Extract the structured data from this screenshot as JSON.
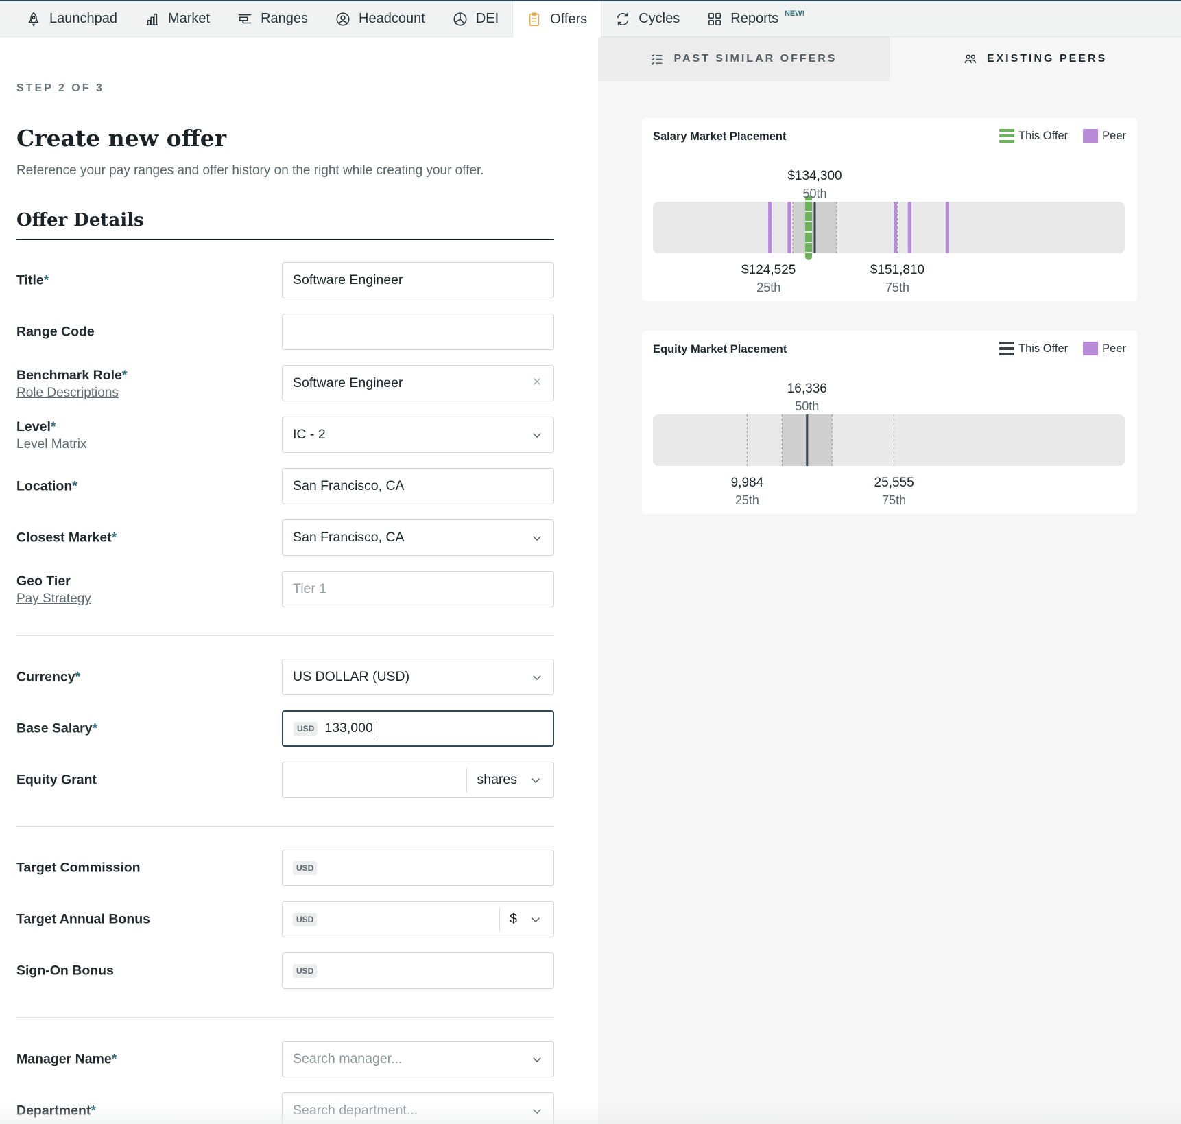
{
  "nav": {
    "items": [
      {
        "label": "Launchpad",
        "icon": "rocket-icon"
      },
      {
        "label": "Market",
        "icon": "bar-chart-icon"
      },
      {
        "label": "Ranges",
        "icon": "ranges-icon"
      },
      {
        "label": "Headcount",
        "icon": "person-circle-icon"
      },
      {
        "label": "DEI",
        "icon": "pie-chart-icon"
      },
      {
        "label": "Offers",
        "icon": "clipboard-icon",
        "active": true
      },
      {
        "label": "Cycles",
        "icon": "refresh-icon"
      },
      {
        "label": "Reports",
        "icon": "grid-icon",
        "badge": "NEW!"
      }
    ]
  },
  "form": {
    "step": "STEP 2 OF 3",
    "title": "Create new offer",
    "subtitle": "Reference your pay ranges and offer history on the right while creating your offer.",
    "section": "Offer Details",
    "required_mark": "*",
    "fields": {
      "title": {
        "label": "Title",
        "value": "Software Engineer"
      },
      "range_code": {
        "label": "Range Code",
        "value": ""
      },
      "benchmark_role": {
        "label": "Benchmark Role",
        "link": "Role Descriptions",
        "value": "Software Engineer"
      },
      "level": {
        "label": "Level",
        "link": "Level Matrix",
        "value": "IC - 2"
      },
      "location": {
        "label": "Location",
        "value": "San Francisco, CA"
      },
      "closest_market": {
        "label": "Closest Market",
        "value": "San Francisco, CA"
      },
      "geo_tier": {
        "label": "Geo Tier",
        "link": "Pay Strategy",
        "value": "Tier 1"
      },
      "currency": {
        "label": "Currency",
        "value": "US DOLLAR (USD)"
      },
      "base_salary": {
        "label": "Base Salary",
        "currency": "USD",
        "value": "133,000"
      },
      "equity_grant": {
        "label": "Equity Grant",
        "value": "",
        "unit": "shares"
      },
      "target_commission": {
        "label": "Target Commission",
        "currency": "USD",
        "value": ""
      },
      "target_annual_bonus": {
        "label": "Target Annual Bonus",
        "currency": "USD",
        "value": "",
        "unit": "$"
      },
      "sign_on_bonus": {
        "label": "Sign-On Bonus",
        "currency": "USD",
        "value": ""
      },
      "manager_name": {
        "label": "Manager Name",
        "placeholder": "Search manager..."
      },
      "department": {
        "label": "Department",
        "placeholder": "Search department..."
      }
    }
  },
  "panel": {
    "tabs": [
      {
        "label": "PAST SIMILAR OFFERS",
        "icon": "list-check-icon",
        "active": false
      },
      {
        "label": "EXISTING PEERS",
        "icon": "people-icon",
        "active": true
      }
    ]
  },
  "colors": {
    "accent": "#2c4b5a",
    "offer_green": "#6db35d",
    "offer_dark": "#3a4448",
    "peer_purple": "#b88ad9",
    "band_light": "#e9e9e9",
    "band_mid": "#cfcfcf",
    "median_line": "#37434a"
  },
  "chart_data": [
    {
      "type": "range-placement",
      "title": "Salary Market Placement",
      "legend": [
        {
          "name": "This Offer",
          "swatch": "green-stripes"
        },
        {
          "name": "Peer",
          "swatch": "purple"
        }
      ],
      "legend_position": "top-right",
      "domain": [
        100000,
        200000
      ],
      "percentiles": [
        {
          "label": "25th",
          "display": "$124,525",
          "value": 124525
        },
        {
          "label": "50th",
          "display": "$134,300",
          "value": 134300
        },
        {
          "label": "75th",
          "display": "$151,810",
          "value": 151810
        }
      ],
      "this_offer": 133000,
      "peers": [
        124800,
        128900,
        151400,
        154400,
        162400
      ]
    },
    {
      "type": "range-placement",
      "title": "Equity Market Placement",
      "legend": [
        {
          "name": "This Offer",
          "swatch": "dark-stripes"
        },
        {
          "name": "Peer",
          "swatch": "purple"
        }
      ],
      "legend_position": "top-right",
      "domain": [
        0,
        50000
      ],
      "percentiles": [
        {
          "label": "25th",
          "display": "9,984",
          "value": 9984
        },
        {
          "label": "50th",
          "display": "16,336",
          "value": 16336
        },
        {
          "label": "75th",
          "display": "25,555",
          "value": 25555
        }
      ],
      "this_offer": null,
      "peers": []
    }
  ]
}
